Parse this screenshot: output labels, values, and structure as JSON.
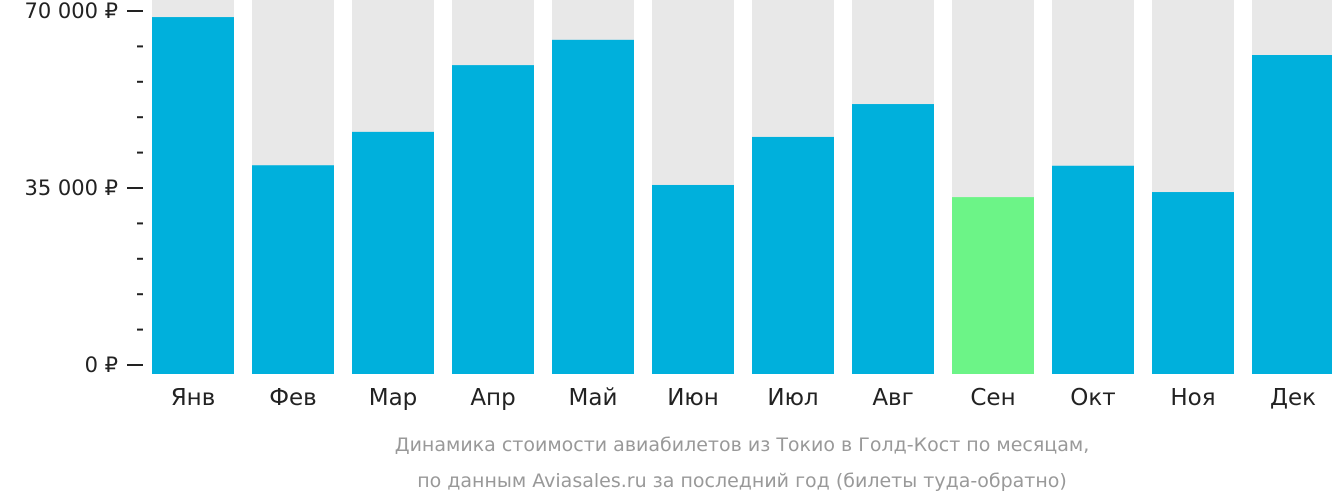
{
  "chart_data": {
    "type": "bar",
    "categories": [
      "Янв",
      "Фев",
      "Мар",
      "Апр",
      "Май",
      "Июн",
      "Июл",
      "Авг",
      "Сен",
      "Окт",
      "Ноя",
      "Дек"
    ],
    "values": [
      68800,
      39500,
      46100,
      59300,
      64300,
      35600,
      45100,
      51600,
      33200,
      39400,
      34200,
      61300
    ],
    "highlight_index": 8,
    "ylim": [
      0,
      70000
    ],
    "yticks": [
      {
        "value": 0,
        "label": "0 ₽"
      },
      {
        "value": 35000,
        "label": "35 000 ₽"
      },
      {
        "value": 70000,
        "label": "70 000 ₽"
      }
    ],
    "minor_tick_step": 7000,
    "caption": [
      "Динамика стоимости авиабилетов из Токио в Голд-Кост по месяцам,",
      "по данным Aviasales.ru за последний год (билеты туда-обратно)"
    ],
    "colors": {
      "bar": "#00b0dc",
      "highlight": "#6cf487",
      "background": "#e8e8e8",
      "axis": "#222222"
    }
  }
}
